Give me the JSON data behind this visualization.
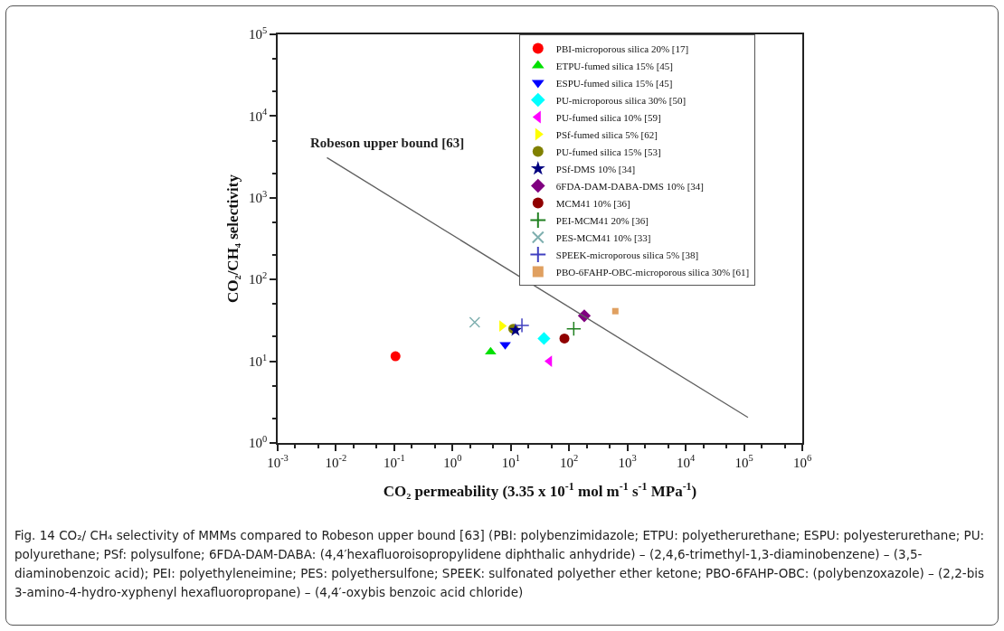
{
  "chart_data": {
    "type": "scatter",
    "xlabel": "CO₂ permeability (3.35 x 10$^{-1}$ mol m$^{-1}$ s$^{-1}$ MPa$^{-1}$)",
    "ylabel": "CO₂/CH₄ selectivity",
    "log": "xy",
    "grid": false,
    "legend": "top right",
    "xlim": [
      0.001,
      1000000
    ],
    "ylim": [
      1,
      100000
    ],
    "xticks": [
      {
        "value": 0.001,
        "label": "10$^{-3}$"
      },
      {
        "value": 0.01,
        "label": "10$^{-2}$"
      },
      {
        "value": 0.1,
        "label": "10$^{-1}$"
      },
      {
        "value": 1,
        "label": "10$^{0}$"
      },
      {
        "value": 10,
        "label": "10$^{1}$"
      },
      {
        "value": 100,
        "label": "10$^{2}$"
      },
      {
        "value": 1000,
        "label": "10$^{3}$"
      },
      {
        "value": 10000,
        "label": "10$^{4}$"
      },
      {
        "value": 100000,
        "label": "10$^{5}$"
      },
      {
        "value": 1000000,
        "label": "10$^{6}$"
      }
    ],
    "yticks": [
      {
        "value": 1,
        "label": "10$^{0}$"
      },
      {
        "value": 10,
        "label": "10$^{1}$"
      },
      {
        "value": 100,
        "label": "10$^{2}$"
      },
      {
        "value": 1000,
        "label": "10$^{3}$"
      },
      {
        "value": 10000,
        "label": "10$^{4}$"
      },
      {
        "value": 100000,
        "label": "10$^{5}$"
      }
    ],
    "series": [
      {
        "name": "PBI-microporous silica 20% [17]",
        "color": "#ff0000",
        "marker": "circle",
        "x": [
          0.105
        ],
        "values": [
          11.5
        ]
      },
      {
        "name": "ETPU-fumed silica 15% [45]",
        "color": "#00e000",
        "marker": "triangle",
        "x": [
          4.5
        ],
        "values": [
          13
        ]
      },
      {
        "name": "ESPU-fumed silica 15% [45]",
        "color": "#0000ff",
        "marker": "triangle-down",
        "x": [
          8
        ],
        "values": [
          16
        ]
      },
      {
        "name": "PU-microporous silica 30% [50]",
        "color": "#00ffff",
        "marker": "diamond",
        "x": [
          37
        ],
        "values": [
          19
        ]
      },
      {
        "name": "PU-fumed silica 10% [59]",
        "color": "#ff00ff",
        "marker": "triangle-left",
        "x": [
          46
        ],
        "values": [
          10
        ]
      },
      {
        "name": "PSf-fumed silica 5% [62]",
        "color": "#ffff00",
        "marker": "triangle-right",
        "x": [
          7
        ],
        "values": [
          27
        ]
      },
      {
        "name": "PU-fumed silica 15% [53]",
        "color": "#808000",
        "marker": "circle",
        "x": [
          11
        ],
        "values": [
          25
        ]
      },
      {
        "name": "PSf-DMS 10% [34]",
        "color": "#000080",
        "marker": "star",
        "x": [
          12
        ],
        "values": [
          24
        ]
      },
      {
        "name": "6FDA-DAM-DABA-DMS 10% [34]",
        "color": "#800080",
        "marker": "diamond",
        "x": [
          182
        ],
        "values": [
          36
        ]
      },
      {
        "name": "MCM41 10% [36]",
        "color": "#900000",
        "marker": "circle",
        "x": [
          83
        ],
        "values": [
          19
        ]
      },
      {
        "name": "PEI-MCM41 20% [36]",
        "color": "#208020",
        "marker": "cross",
        "x": [
          120
        ],
        "values": [
          25
        ]
      },
      {
        "name": "PES-MCM41 10% [33]",
        "color": "#80b0b0",
        "marker": "x",
        "x": [
          2.4
        ],
        "values": [
          30
        ]
      },
      {
        "name": "SPEEK-microporous silica 5% [38]",
        "color": "#4040c0",
        "marker": "cross",
        "x": [
          15.5
        ],
        "values": [
          27.5
        ]
      },
      {
        "name": "PBO-6FAHP-OBC-microporous silica 30% [61]",
        "color": "#e0a060",
        "marker": "square",
        "x": [
          620
        ],
        "values": [
          41
        ]
      },
      {
        "name": "Robeson upper bound [63]",
        "type": "line",
        "color": "#606060",
        "x": [
          0.007,
          117000
        ],
        "values": [
          3100,
          2.05
        ]
      }
    ],
    "annotations": [
      "Fig. 14 CO₂/ CH₄ selectivity of MMMs compared to Robeson upper bound [63] (PBI: polybenzimidazole; ETPU: polyetherurethane; ESPU: polyesterurethane; PU: polyurethane; PSf: polysulfone; 6FDA-DAM-DABA: (4,4′hexafluoroisopropylidene diphthalic anhydride) – (2,4,6-trimethyl-1,3-diaminobenzene) – (3,5-diaminobenzoic acid); PEI: polyethyleneimine; PES: polyethersulfone; SPEEK: sulfonated polyether ether ketone; PBO-6FAHP-OBC: (polybenzoxazole) – (2,2-bis 3-amino-4-hydro-xyphenyl hexafluoropropane) – (4,4′-oxybis benzoic acid chloride)"
    ]
  }
}
